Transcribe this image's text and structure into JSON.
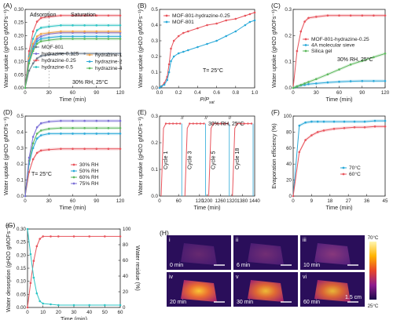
{
  "colors": {
    "pink": "#e8545c",
    "blue": "#2aa9d8",
    "green": "#5cb85c",
    "purple": "#7b6fd6",
    "orange": "#f0a54c",
    "red": "#d9534f",
    "gray": "#6c7a89",
    "teal": "#2ec4c4"
  },
  "panels": [
    {
      "letter": "(A)",
      "ylabel": "Water uptake (g_H2O g_MOFs⁻¹)",
      "xlabel": "Time (min)",
      "xticks": [
        "0",
        "30",
        "60",
        "90",
        "120"
      ],
      "yticks": [
        "0.00",
        "0.05",
        "0.10",
        "0.15",
        "0.20",
        "0.25",
        "0.30"
      ],
      "annotations": [
        "Adsorption",
        "Saturation",
        "30% RH, 25°C"
      ],
      "legend": [
        "MOF-801",
        "hydrazine-0.125",
        "hydrazine-0.25",
        "hydrazine-0.5",
        "hydrazine-1",
        "hydrazine-2",
        "hydrazine-4"
      ]
    },
    {
      "letter": "(B)",
      "ylabel": "Water uptake (g_H2O g_MOFs⁻¹)",
      "xlabel": "P/P_sat",
      "xticks": [
        "0.0",
        "0.2",
        "0.4",
        "0.6",
        "0.8",
        "1.0"
      ],
      "yticks": [
        "0.0",
        "0.1",
        "0.2",
        "0.3",
        "0.4",
        "0.5"
      ],
      "annotations": [
        "T= 25°C"
      ],
      "legend": [
        "MOF-801-hydrazine-0.25",
        "MOF-801"
      ]
    },
    {
      "letter": "(C)",
      "ylabel": "Water uptake (g_H2O g_MOFs⁻¹)",
      "xlabel": "Time (min)",
      "xticks": [
        "0",
        "30",
        "60",
        "90",
        "120"
      ],
      "yticks": [
        "0.0",
        "0.1",
        "0.2",
        "0.3"
      ],
      "annotations": [
        "30% RH, 25°C"
      ],
      "legend": [
        "MOF-801-hydrazine-0.25",
        "4A molecular sieve",
        "Silica gel"
      ]
    },
    {
      "letter": "(D)",
      "ylabel": "Water uptake (g_H2O g_MOFs⁻¹)",
      "xlabel": "Time (min)",
      "xticks": [
        "0",
        "30",
        "60",
        "90",
        "120"
      ],
      "yticks": [
        "0.0",
        "0.1",
        "0.2",
        "0.3",
        "0.4",
        "0.5"
      ],
      "annotations": [
        "T= 25°C"
      ],
      "legend": [
        "30% RH",
        "50% RH",
        "60% RH",
        "75% RH"
      ]
    },
    {
      "letter": "(E)",
      "ylabel": "Water uptake (g_H2O g_MOFs⁻¹)",
      "xlabel": "Time (min)",
      "xticks": [
        "0",
        "60",
        "120",
        "1200",
        "1260",
        "1320",
        "1380",
        "1440"
      ],
      "yticks": [
        "0.0",
        "0.1",
        "0.2",
        "0.3"
      ],
      "annotations": [
        "30% RH, 25°C",
        "Cycle 1",
        "Cycle 3",
        "Cycle 5",
        "Cycle 18"
      ],
      "legend": []
    },
    {
      "letter": "(F)",
      "ylabel": "Evaporation efficiency (%)",
      "xlabel": "Time (min)",
      "xticks": [
        "0",
        "9",
        "18",
        "27",
        "36",
        "45"
      ],
      "yticks": [
        "0",
        "20",
        "40",
        "60",
        "80",
        "100"
      ],
      "annotations": [],
      "legend": [
        "70°C",
        "60°C"
      ]
    },
    {
      "letter": "(G)",
      "ylabel": "Water desorption (g_H2O g_MOFs⁻¹)",
      "ylabel2": "Water residue (%)",
      "xlabel": "Time (min)",
      "xticks": [
        "0",
        "10",
        "20",
        "30",
        "40",
        "50",
        "60"
      ],
      "yticks": [
        "0.00",
        "0.05",
        "0.10",
        "0.15",
        "0.20",
        "0.25",
        "0.30"
      ],
      "yticks2": [
        "0",
        "20",
        "40",
        "60",
        "80",
        "100"
      ],
      "annotations": [],
      "legend": []
    },
    {
      "letter": "(H)",
      "panels": [
        "i",
        "ii",
        "iii",
        "iv",
        "v",
        "vi"
      ],
      "times": [
        "0 min",
        "6 min",
        "10 min",
        "20 min",
        "30 min",
        "60 min"
      ],
      "scale_bar": "1.5 cm",
      "colorbar": [
        "70°C",
        "25°C"
      ]
    }
  ],
  "chart_data": [
    {
      "type": "line",
      "title": "",
      "xlabel": "Time (min)",
      "ylabel": "Water uptake (g_H2O g_MOFs⁻¹)",
      "xlim": [
        0,
        120
      ],
      "ylim": [
        0,
        0.32
      ],
      "x": [
        0,
        5,
        10,
        15,
        20,
        30,
        45,
        60,
        75,
        90,
        105,
        120
      ],
      "series": [
        {
          "name": "MOF-801",
          "color": "#6c7a89",
          "values": [
            0,
            0.07,
            0.1,
            0.12,
            0.13,
            0.135,
            0.14,
            0.14,
            0.14,
            0.14,
            0.14,
            0.14
          ]
        },
        {
          "name": "hydrazine-0.125",
          "color": "#7b6fd6",
          "values": [
            0,
            0.11,
            0.17,
            0.2,
            0.21,
            0.22,
            0.225,
            0.225,
            0.225,
            0.225,
            0.225,
            0.225
          ]
        },
        {
          "name": "hydrazine-0.25",
          "color": "#e8545c",
          "values": [
            0,
            0.15,
            0.23,
            0.27,
            0.285,
            0.29,
            0.295,
            0.295,
            0.295,
            0.295,
            0.295,
            0.295
          ]
        },
        {
          "name": "hydrazine-0.5",
          "color": "#2ec4c4",
          "values": [
            0,
            0.13,
            0.2,
            0.235,
            0.245,
            0.25,
            0.255,
            0.255,
            0.255,
            0.255,
            0.255,
            0.255
          ]
        },
        {
          "name": "hydrazine-1",
          "color": "#f0a54c",
          "values": [
            0,
            0.12,
            0.18,
            0.21,
            0.22,
            0.225,
            0.23,
            0.23,
            0.23,
            0.23,
            0.23,
            0.23
          ]
        },
        {
          "name": "hydrazine-2",
          "color": "#2aa9d8",
          "values": [
            0,
            0.11,
            0.16,
            0.19,
            0.2,
            0.205,
            0.21,
            0.21,
            0.21,
            0.21,
            0.21,
            0.21
          ]
        },
        {
          "name": "hydrazine-4",
          "color": "#5cb85c",
          "values": [
            0,
            0.1,
            0.15,
            0.18,
            0.19,
            0.195,
            0.2,
            0.2,
            0.2,
            0.2,
            0.2,
            0.2
          ]
        }
      ]
    },
    {
      "type": "line",
      "title": "",
      "xlabel": "P/P_sat",
      "ylabel": "Water uptake (g_H2O g_MOFs⁻¹)",
      "xlim": [
        0,
        1
      ],
      "ylim": [
        0,
        0.5
      ],
      "series": [
        {
          "name": "MOF-801-hydrazine-0.25",
          "color": "#e8545c",
          "x": [
            0,
            0.02,
            0.05,
            0.08,
            0.1,
            0.12,
            0.15,
            0.2,
            0.25,
            0.3,
            0.4,
            0.5,
            0.6,
            0.7,
            0.8,
            0.9,
            0.95,
            1.0
          ],
          "values": [
            0,
            0.01,
            0.03,
            0.07,
            0.15,
            0.25,
            0.3,
            0.33,
            0.35,
            0.36,
            0.38,
            0.4,
            0.41,
            0.43,
            0.44,
            0.46,
            0.47,
            0.48
          ]
        },
        {
          "name": "MOF-801",
          "color": "#2aa9d8",
          "x": [
            0,
            0.02,
            0.05,
            0.08,
            0.1,
            0.12,
            0.15,
            0.2,
            0.25,
            0.3,
            0.4,
            0.5,
            0.6,
            0.7,
            0.8,
            0.9,
            0.95,
            1.0
          ],
          "values": [
            0,
            0.01,
            0.02,
            0.05,
            0.1,
            0.17,
            0.2,
            0.22,
            0.23,
            0.24,
            0.26,
            0.28,
            0.3,
            0.33,
            0.36,
            0.4,
            0.42,
            0.43
          ]
        }
      ]
    },
    {
      "type": "line",
      "title": "",
      "xlabel": "Time (min)",
      "ylabel": "Water uptake (g_H2O g_MOFs⁻¹)",
      "xlim": [
        0,
        120
      ],
      "ylim": [
        0,
        0.32
      ],
      "x": [
        0,
        5,
        10,
        15,
        20,
        30,
        45,
        60,
        75,
        90,
        105,
        120
      ],
      "series": [
        {
          "name": "MOF-801-hydrazine-0.25",
          "color": "#e8545c",
          "values": [
            0,
            0.15,
            0.23,
            0.27,
            0.285,
            0.29,
            0.295,
            0.295,
            0.295,
            0.295,
            0.295,
            0.295
          ]
        },
        {
          "name": "4A molecular sieve",
          "color": "#2aa9d8",
          "values": [
            0,
            0.005,
            0.01,
            0.012,
            0.015,
            0.018,
            0.022,
            0.025,
            0.027,
            0.028,
            0.028,
            0.028
          ]
        },
        {
          "name": "Silica gel",
          "color": "#5cb85c",
          "values": [
            0,
            0.006,
            0.012,
            0.018,
            0.024,
            0.036,
            0.055,
            0.075,
            0.095,
            0.11,
            0.125,
            0.14
          ]
        }
      ]
    },
    {
      "type": "line",
      "title": "",
      "xlabel": "Time (min)",
      "ylabel": "Water uptake (g_H2O g_MOFs⁻¹)",
      "xlim": [
        0,
        120
      ],
      "ylim": [
        0,
        0.5
      ],
      "x": [
        0,
        5,
        10,
        15,
        20,
        30,
        45,
        60,
        75,
        90,
        105,
        120
      ],
      "series": [
        {
          "name": "30% RH",
          "color": "#e8545c",
          "values": [
            0,
            0.15,
            0.23,
            0.27,
            0.285,
            0.29,
            0.295,
            0.295,
            0.295,
            0.295,
            0.295,
            0.295
          ]
        },
        {
          "name": "50% RH",
          "color": "#2aa9d8",
          "values": [
            0,
            0.2,
            0.3,
            0.36,
            0.38,
            0.39,
            0.39,
            0.39,
            0.39,
            0.39,
            0.39,
            0.39
          ]
        },
        {
          "name": "60% RH",
          "color": "#5cb85c",
          "values": [
            0,
            0.22,
            0.33,
            0.39,
            0.41,
            0.42,
            0.425,
            0.425,
            0.425,
            0.425,
            0.425,
            0.425
          ]
        },
        {
          "name": "75% RH",
          "color": "#7b6fd6",
          "values": [
            0,
            0.24,
            0.37,
            0.43,
            0.455,
            0.465,
            0.47,
            0.47,
            0.47,
            0.47,
            0.47,
            0.47
          ]
        }
      ]
    },
    {
      "type": "line",
      "title": "",
      "xlabel": "Time (min)",
      "ylabel": "Water uptake (g_H2O g_MOFs⁻¹)",
      "ylim": [
        0,
        0.32
      ],
      "cycles": [
        "Cycle 1",
        "Cycle 3",
        "Cycle 5",
        "Cycle 18"
      ],
      "series": [
        {
          "name": "uptake",
          "color": "#e8545c",
          "values": [
            0,
            0.29,
            0.295,
            0.295,
            0.29,
            0.295,
            0.295,
            0.29,
            0.295,
            0.295,
            0.29,
            0.295
          ]
        }
      ]
    },
    {
      "type": "line",
      "title": "",
      "xlabel": "Time (min)",
      "ylabel": "Evaporation efficiency (%)",
      "xlim": [
        0,
        45
      ],
      "ylim": [
        0,
        100
      ],
      "series": [
        {
          "name": "70°C",
          "color": "#2aa9d8",
          "x": [
            0,
            3,
            6,
            9,
            12,
            15,
            20,
            25,
            30,
            35,
            40,
            45
          ],
          "values": [
            0,
            88,
            92,
            93,
            93,
            93,
            93,
            93,
            93,
            93,
            94,
            94
          ]
        },
        {
          "name": "60°C",
          "color": "#e8545c",
          "x": [
            0,
            3,
            6,
            9,
            12,
            15,
            20,
            25,
            30,
            35,
            40,
            45
          ],
          "values": [
            0,
            55,
            70,
            76,
            80,
            82,
            84,
            85,
            86,
            86,
            87,
            87
          ]
        }
      ]
    },
    {
      "type": "line",
      "title": "",
      "xlabel": "Time (min)",
      "ylabel": "Water desorption (g_H2O g_MOFs⁻¹)",
      "ylabel2": "Water residue (%)",
      "xlim": [
        0,
        60
      ],
      "ylim": [
        0,
        0.32
      ],
      "ylim2": [
        0,
        100
      ],
      "series": [
        {
          "name": "",
          "axis": "left",
          "color": "#e8545c",
          "x": [
            0,
            2,
            4,
            6,
            8,
            10,
            15,
            20,
            30,
            40,
            50,
            60
          ],
          "values": [
            0,
            0.1,
            0.19,
            0.25,
            0.28,
            0.29,
            0.29,
            0.29,
            0.29,
            0.29,
            0.29,
            0.29
          ]
        },
        {
          "name": "",
          "axis": "right",
          "color": "#2ec4c4",
          "x": [
            0,
            2,
            4,
            6,
            8,
            10,
            15,
            20,
            30,
            40,
            50,
            60
          ],
          "values": [
            100,
            68,
            38,
            18,
            8,
            5,
            4,
            3,
            3,
            3,
            3,
            3
          ]
        }
      ]
    }
  ]
}
